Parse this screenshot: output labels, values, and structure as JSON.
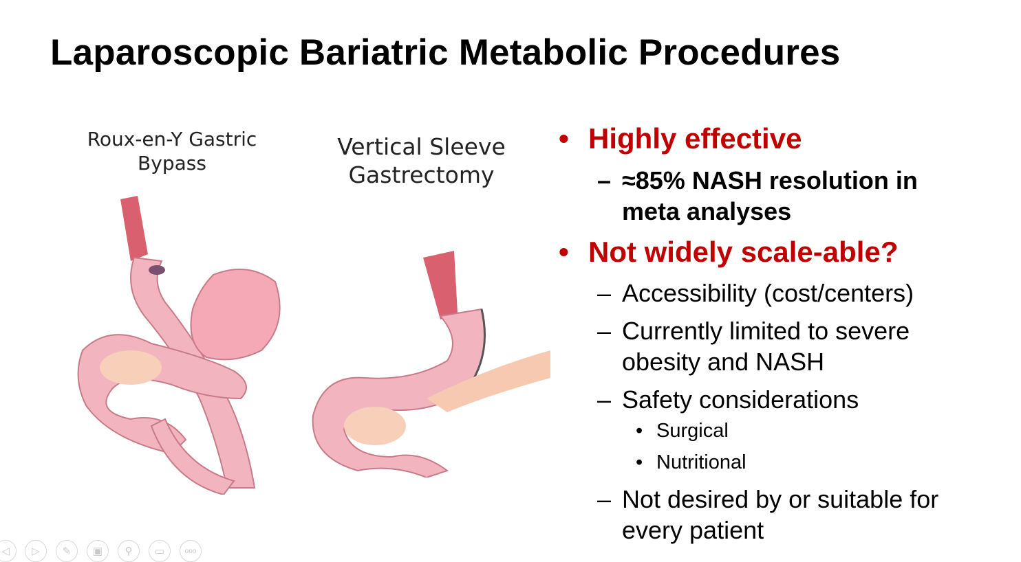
{
  "slide": {
    "title": "Laparoscopic Bariatric Metabolic Procedures",
    "figures": [
      {
        "caption_line1": "Roux-en-Y Gastric",
        "caption_line2": "Bypass"
      },
      {
        "caption_line1": "Vertical Sleeve",
        "caption_line2": "Gastrectomy"
      }
    ],
    "bullets": [
      {
        "text": "Highly effective",
        "sub": [
          {
            "line1": "≈85% NASH resolution in",
            "line2": "meta analyses"
          }
        ]
      },
      {
        "text": "Not widely scale-able?",
        "sub": [
          {
            "line1": "Accessibility (cost/centers)"
          },
          {
            "line1": "Currently limited to severe",
            "line2": "obesity and NASH"
          },
          {
            "line1": "Safety considerations",
            "sub": [
              "Surgical",
              "Nutritional"
            ]
          },
          {
            "line1": "Not desired by or suitable for",
            "line2": "every patient"
          }
        ]
      }
    ],
    "bullet_color": "#c00000"
  },
  "slideshow_controls": {
    "icons": [
      "previous-icon",
      "next-icon",
      "pen-icon",
      "slides-icon",
      "zoom-icon",
      "subtitles-icon",
      "more-icon"
    ]
  }
}
